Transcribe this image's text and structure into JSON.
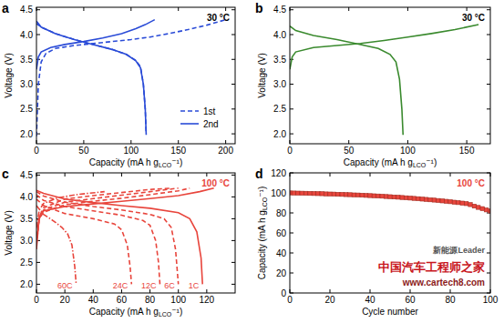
{
  "chart_data": [
    {
      "type": "line",
      "panel": "a",
      "title": "30 °C",
      "x_label": "Capacity (mA h gLCO⁻¹)",
      "y_label": "Voltage (V)",
      "xlim": [
        0,
        210
      ],
      "xticks": [
        0,
        50,
        100,
        150,
        200
      ],
      "ylim": [
        1.8,
        4.55
      ],
      "yticks": [
        {
          "value": 2,
          "label": "2.0"
        },
        2.5,
        {
          "value": 3,
          "label": "3.0"
        },
        3.5,
        {
          "value": 4,
          "label": "4.0"
        },
        4.5
      ],
      "legend": "bottom-right",
      "series": [
        {
          "name": "1st",
          "color": "#2a4bd7",
          "line_style": "dashed",
          "x": [
            0,
            2,
            5,
            10,
            20,
            40,
            60,
            80,
            100,
            120,
            140,
            160,
            180,
            200,
            null,
            0,
            5,
            20,
            40,
            60,
            80,
            95,
            105,
            110,
            113,
            115,
            116
          ],
          "values": [
            1.95,
            3.0,
            3.45,
            3.62,
            3.72,
            3.78,
            3.82,
            3.86,
            3.9,
            3.95,
            4.02,
            4.1,
            4.19,
            4.3,
            null,
            4.22,
            4.15,
            4.02,
            3.9,
            3.8,
            3.7,
            3.6,
            3.48,
            3.35,
            3.0,
            2.5,
            2.0
          ]
        },
        {
          "name": "2nd",
          "color": "#2a4bd7",
          "line_style": "solid",
          "x": [
            0,
            2,
            5,
            15,
            30,
            50,
            70,
            90,
            105,
            115,
            125,
            null,
            0,
            5,
            20,
            40,
            60,
            80,
            95,
            105,
            110,
            113,
            115,
            116
          ],
          "values": [
            3.3,
            3.55,
            3.65,
            3.74,
            3.8,
            3.86,
            3.93,
            4.02,
            4.12,
            4.2,
            4.3,
            null,
            4.27,
            4.15,
            4.02,
            3.9,
            3.8,
            3.7,
            3.6,
            3.47,
            3.33,
            3.0,
            2.5,
            1.98
          ]
        }
      ]
    },
    {
      "type": "line",
      "panel": "b",
      "title": "30 °C",
      "x_label": "Capacity (mA h gLCO⁻¹)",
      "y_label": "Voltage (V)",
      "xlim": [
        0,
        170
      ],
      "xticks": [
        0,
        50,
        100,
        150
      ],
      "ylim": [
        1.8,
        4.55
      ],
      "yticks": [
        {
          "value": 2,
          "label": "2.0"
        },
        2.5,
        {
          "value": 3,
          "label": "3.0"
        },
        3.5,
        {
          "value": 4,
          "label": "4.0"
        },
        4.5
      ],
      "series": [
        {
          "color": "#3a8a2e",
          "line_style": "solid",
          "x": [
            0,
            2,
            5,
            20,
            40,
            60,
            80,
            100,
            120,
            140,
            160,
            null,
            0,
            5,
            20,
            40,
            60,
            75,
            85,
            90,
            93,
            95,
            96
          ],
          "values": [
            3.3,
            3.55,
            3.65,
            3.74,
            3.78,
            3.82,
            3.88,
            3.95,
            4.02,
            4.1,
            4.2,
            null,
            4.17,
            4.08,
            3.98,
            3.9,
            3.8,
            3.72,
            3.6,
            3.45,
            3.1,
            2.5,
            1.98
          ]
        }
      ]
    },
    {
      "type": "line",
      "panel": "c",
      "title": "100 °C",
      "color": "#e8453c",
      "x_label": "Capacity (mA h gLCO⁻¹)",
      "y_label": "Voltage (V)",
      "xlim": [
        0,
        140
      ],
      "xticks": [
        0,
        20,
        40,
        60,
        80,
        100,
        120
      ],
      "ylim": [
        1.8,
        4.55
      ],
      "yticks": [
        {
          "value": 2,
          "label": "2.0"
        },
        2.5,
        {
          "value": 3,
          "label": "3.0"
        },
        3.5,
        {
          "value": 4,
          "label": "4.0"
        },
        4.5
      ],
      "series": [
        {
          "name": "60C",
          "color": "#e8453c",
          "line_style": "dashdot",
          "x": [
            0,
            2,
            5,
            15,
            30,
            48,
            null,
            0,
            5,
            12,
            18,
            22,
            25,
            27,
            28
          ],
          "values": [
            3.3,
            3.7,
            3.85,
            3.98,
            4.06,
            4.12,
            null,
            3.8,
            3.6,
            3.45,
            3.3,
            3.15,
            2.9,
            2.4,
            2.0
          ]
        },
        {
          "name": "24C",
          "color": "#e8453c",
          "line_style": "dashed",
          "x": [
            0,
            2,
            5,
            20,
            40,
            60,
            80,
            95,
            null,
            0,
            5,
            20,
            40,
            55,
            60,
            64,
            66,
            67
          ],
          "values": [
            3.1,
            3.55,
            3.75,
            3.95,
            4.03,
            4.1,
            4.17,
            4.2,
            null,
            3.95,
            3.8,
            3.62,
            3.5,
            3.38,
            3.25,
            2.9,
            2.4,
            2.0
          ]
        },
        {
          "name": "12C",
          "color": "#e8453c",
          "line_style": "dashed",
          "x": [
            0,
            2,
            5,
            20,
            40,
            60,
            80,
            100,
            null,
            0,
            5,
            20,
            40,
            60,
            75,
            80,
            84,
            86,
            87
          ],
          "values": [
            3.0,
            3.5,
            3.7,
            3.88,
            3.96,
            4.04,
            4.12,
            4.2,
            null,
            4.05,
            3.92,
            3.78,
            3.68,
            3.58,
            3.46,
            3.35,
            3.0,
            2.5,
            2.0
          ]
        },
        {
          "name": "6C",
          "color": "#e8453c",
          "line_style": "dashed",
          "x": [
            0,
            2,
            5,
            20,
            40,
            60,
            80,
            100,
            108,
            null,
            0,
            5,
            20,
            40,
            60,
            80,
            90,
            95,
            98,
            100
          ],
          "values": [
            2.9,
            3.5,
            3.65,
            3.82,
            3.9,
            3.97,
            4.05,
            4.14,
            4.2,
            null,
            4.12,
            4.02,
            3.88,
            3.78,
            3.7,
            3.6,
            3.5,
            3.3,
            2.8,
            2.0
          ]
        },
        {
          "name": "1C",
          "color": "#e8453c",
          "line_style": "solid",
          "x": [
            0,
            2,
            5,
            20,
            40,
            60,
            80,
            100,
            115,
            125,
            null,
            0,
            5,
            20,
            40,
            60,
            80,
            100,
            108,
            113,
            116,
            117
          ],
          "values": [
            2.8,
            3.55,
            3.68,
            3.78,
            3.84,
            3.9,
            3.96,
            4.03,
            4.12,
            4.2,
            null,
            4.15,
            4.08,
            3.95,
            3.87,
            3.8,
            3.74,
            3.64,
            3.5,
            3.2,
            2.6,
            2.0
          ]
        }
      ]
    },
    {
      "type": "scatter",
      "panel": "d",
      "title": "100 °C",
      "color": "#e8453c",
      "x_label": "Cycle number",
      "y_label": "Capacity (mA h gLCO⁻¹)",
      "xlim": [
        0,
        100
      ],
      "xticks": [
        0,
        20,
        40,
        60,
        80,
        100
      ],
      "ylim": [
        0,
        120
      ],
      "yticks": [
        0,
        20,
        40,
        60,
        80,
        100,
        120
      ],
      "annotations": [
        "新能源Leader",
        "中国汽车工程师之家",
        "www.cartech8.com"
      ],
      "series": [
        {
          "color": "#e8453c",
          "marker": "square",
          "x": [
            0,
            2,
            4,
            6,
            8,
            10,
            12,
            14,
            16,
            18,
            20,
            22,
            24,
            26,
            28,
            30,
            32,
            34,
            36,
            38,
            40,
            42,
            44,
            46,
            48,
            50,
            52,
            54,
            56,
            58,
            60,
            62,
            64,
            66,
            68,
            70,
            72,
            74,
            76,
            78,
            80,
            82,
            84,
            86,
            88,
            90,
            92,
            94,
            96,
            98,
            100
          ],
          "values": [
            100.0,
            99.9,
            99.8,
            99.7,
            99.6,
            99.5,
            99.4,
            99.3,
            99.2,
            99.0,
            98.9,
            98.8,
            98.6,
            98.5,
            98.3,
            98.2,
            98.0,
            97.9,
            97.7,
            97.5,
            97.3,
            97.1,
            96.9,
            96.7,
            96.4,
            96.2,
            95.9,
            95.7,
            95.4,
            95.1,
            94.8,
            94.5,
            94.2,
            93.8,
            93.5,
            93.1,
            92.8,
            92.4,
            92.0,
            91.6,
            91.2,
            90.7,
            90.3,
            89.8,
            89.3,
            88.3,
            86.8,
            85.5,
            84.3,
            83.0,
            81.9
          ]
        }
      ]
    }
  ]
}
